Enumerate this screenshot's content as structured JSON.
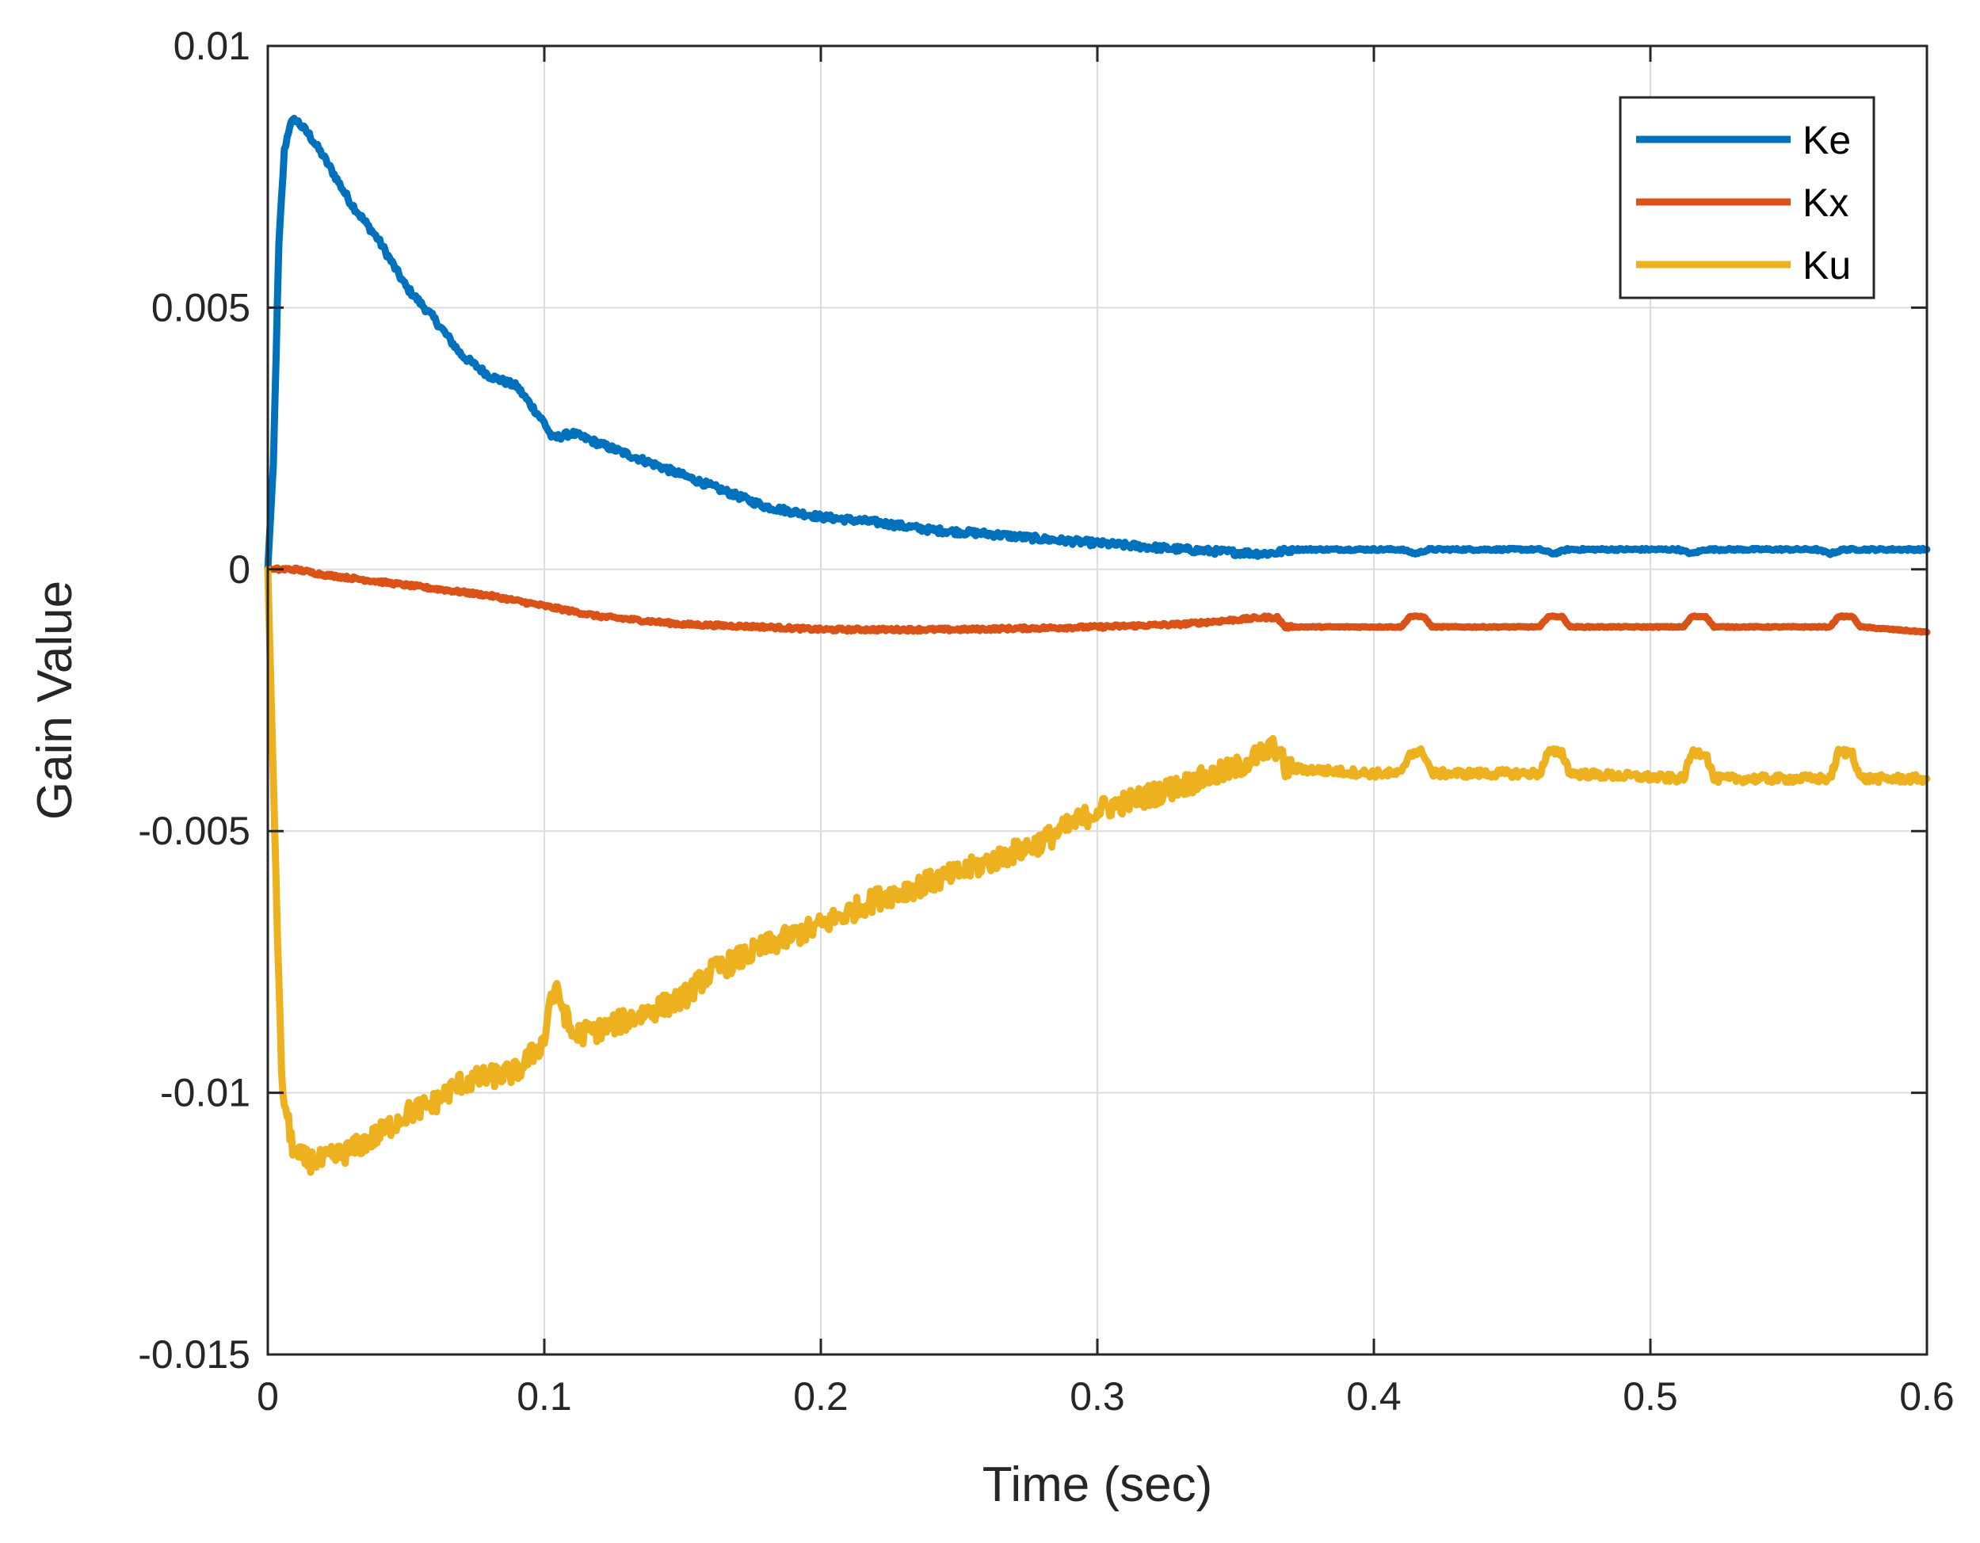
{
  "chart_data": {
    "type": "line",
    "title": "",
    "xlabel": "Time (sec)",
    "ylabel": "Gain Value",
    "xlim": [
      0,
      0.6
    ],
    "ylim": [
      -0.015,
      0.01
    ],
    "xticks": [
      0,
      0.1,
      0.2,
      0.3,
      0.4,
      0.5,
      0.6
    ],
    "xtick_labels": [
      "0",
      "0.1",
      "0.2",
      "0.3",
      "0.4",
      "0.5",
      "0.6"
    ],
    "yticks": [
      0.01,
      0.005,
      0,
      -0.005,
      -0.01,
      -0.015
    ],
    "ytick_labels": [
      "0.01",
      "0.005",
      "0",
      "-0.005",
      "-0.01",
      "-0.015"
    ],
    "grid": true,
    "legend_position": "top-right",
    "series": [
      {
        "name": "Ke",
        "color": "#0072BD",
        "noise": 6e-05,
        "x": [
          0,
          0.002,
          0.004,
          0.006,
          0.008,
          0.01,
          0.015,
          0.02,
          0.03,
          0.04,
          0.05,
          0.06,
          0.07,
          0.08,
          0.09,
          0.1,
          0.103,
          0.11,
          0.12,
          0.13,
          0.14,
          0.15,
          0.16,
          0.17,
          0.18,
          0.2,
          0.22,
          0.24,
          0.26,
          0.28,
          0.3,
          0.32,
          0.34,
          0.36,
          0.365,
          0.37,
          0.4,
          0.41,
          0.415,
          0.42,
          0.45,
          0.46,
          0.465,
          0.47,
          0.5,
          0.51,
          0.515,
          0.52,
          0.55,
          0.56,
          0.565,
          0.57,
          0.6
        ],
        "y": [
          0,
          0.002,
          0.0062,
          0.008,
          0.0085,
          0.0086,
          0.0083,
          0.0079,
          0.007,
          0.0063,
          0.0054,
          0.0048,
          0.0041,
          0.0037,
          0.0035,
          0.0028,
          0.0025,
          0.0026,
          0.0024,
          0.0022,
          0.002,
          0.0018,
          0.0016,
          0.0014,
          0.0012,
          0.001,
          0.0009,
          0.00075,
          0.00068,
          0.00058,
          0.0005,
          0.00042,
          0.00035,
          0.0003,
          0.00032,
          0.00038,
          0.00038,
          0.00038,
          0.0003,
          0.00038,
          0.00038,
          0.00038,
          0.0003,
          0.00038,
          0.00038,
          0.00038,
          0.0003,
          0.00038,
          0.00038,
          0.00038,
          0.0003,
          0.00038,
          0.00038
        ]
      },
      {
        "name": "Kx",
        "color": "#D95319",
        "noise": 3e-05,
        "x": [
          0,
          0.01,
          0.02,
          0.05,
          0.08,
          0.1,
          0.12,
          0.15,
          0.18,
          0.2,
          0.25,
          0.3,
          0.33,
          0.36,
          0.365,
          0.368,
          0.41,
          0.413,
          0.418,
          0.421,
          0.46,
          0.463,
          0.468,
          0.471,
          0.512,
          0.515,
          0.52,
          0.523,
          0.565,
          0.568,
          0.573,
          0.576,
          0.6
        ],
        "y": [
          0,
          0,
          -0.0001,
          -0.0003,
          -0.0005,
          -0.0007,
          -0.0009,
          -0.00105,
          -0.0011,
          -0.00115,
          -0.00115,
          -0.0011,
          -0.00105,
          -0.00092,
          -0.00092,
          -0.0011,
          -0.0011,
          -0.0009,
          -0.0009,
          -0.0011,
          -0.0011,
          -0.0009,
          -0.0009,
          -0.0011,
          -0.0011,
          -0.0009,
          -0.0009,
          -0.0011,
          -0.0011,
          -0.0009,
          -0.0009,
          -0.0011,
          -0.0012
        ]
      },
      {
        "name": "Ku",
        "color": "#EDB120",
        "noise": 0.00022,
        "x": [
          0,
          0.002,
          0.005,
          0.008,
          0.01,
          0.015,
          0.02,
          0.03,
          0.04,
          0.05,
          0.06,
          0.07,
          0.08,
          0.09,
          0.1,
          0.102,
          0.105,
          0.11,
          0.12,
          0.13,
          0.14,
          0.15,
          0.16,
          0.18,
          0.2,
          0.22,
          0.25,
          0.28,
          0.3,
          0.32,
          0.35,
          0.36,
          0.365,
          0.368,
          0.4,
          0.41,
          0.413,
          0.418,
          0.421,
          0.46,
          0.463,
          0.468,
          0.471,
          0.512,
          0.515,
          0.52,
          0.523,
          0.565,
          0.568,
          0.573,
          0.576,
          0.6
        ],
        "y": [
          0,
          -0.004,
          -0.0098,
          -0.0108,
          -0.0112,
          -0.0113,
          -0.0113,
          -0.0111,
          -0.0108,
          -0.0104,
          -0.0102,
          -0.0098,
          -0.0097,
          -0.0096,
          -0.009,
          -0.0082,
          -0.0081,
          -0.0089,
          -0.0088,
          -0.0086,
          -0.0084,
          -0.0082,
          -0.0077,
          -0.0072,
          -0.0068,
          -0.0063,
          -0.0058,
          -0.0052,
          -0.0046,
          -0.0043,
          -0.0038,
          -0.0035,
          -0.0034,
          -0.0038,
          -0.0039,
          -0.0039,
          -0.0035,
          -0.0035,
          -0.0039,
          -0.0039,
          -0.0035,
          -0.0035,
          -0.0039,
          -0.004,
          -0.0035,
          -0.0035,
          -0.004,
          -0.004,
          -0.0035,
          -0.0035,
          -0.004,
          -0.004
        ]
      }
    ]
  }
}
